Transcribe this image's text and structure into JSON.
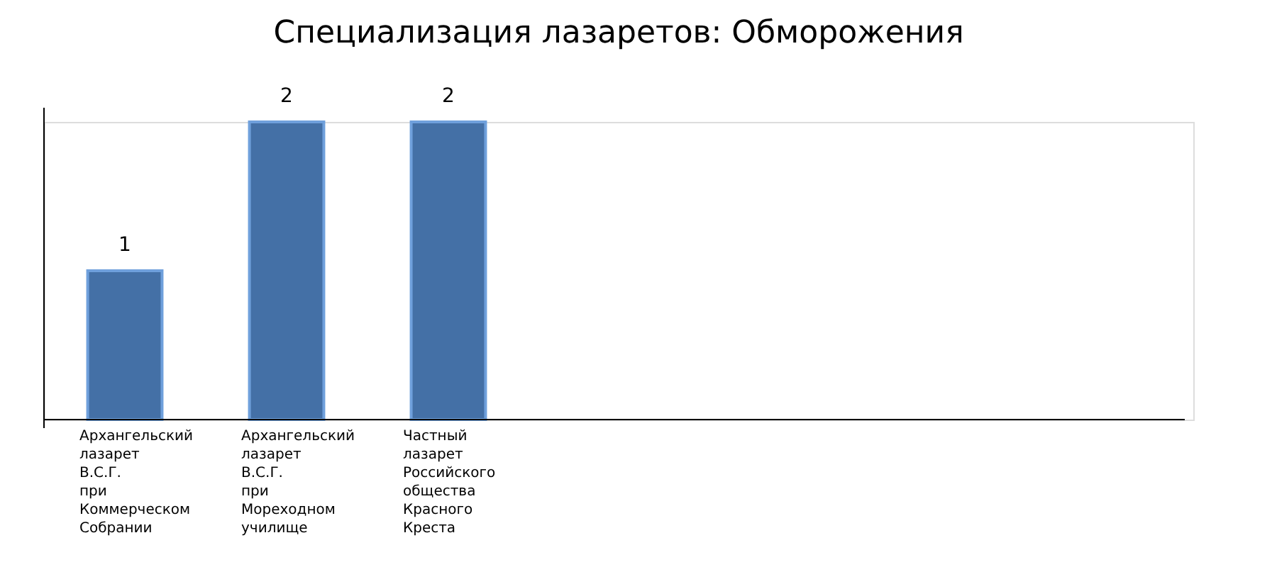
{
  "chart_data": {
    "type": "bar",
    "title": "Специализация лазаретов: Обморожения",
    "categories": [
      "Архангельский лазарет В.С.Г. при Коммерческом Собрании",
      "Архангельский лазарет В.С.Г. при Мореходном училище",
      "Частный лазарет Российского общества Красного Креста"
    ],
    "values": [
      1,
      2,
      2
    ],
    "color": "#4470a6",
    "ylim": [
      0,
      2
    ],
    "data_labels": true,
    "tick_labels": "x"
  }
}
